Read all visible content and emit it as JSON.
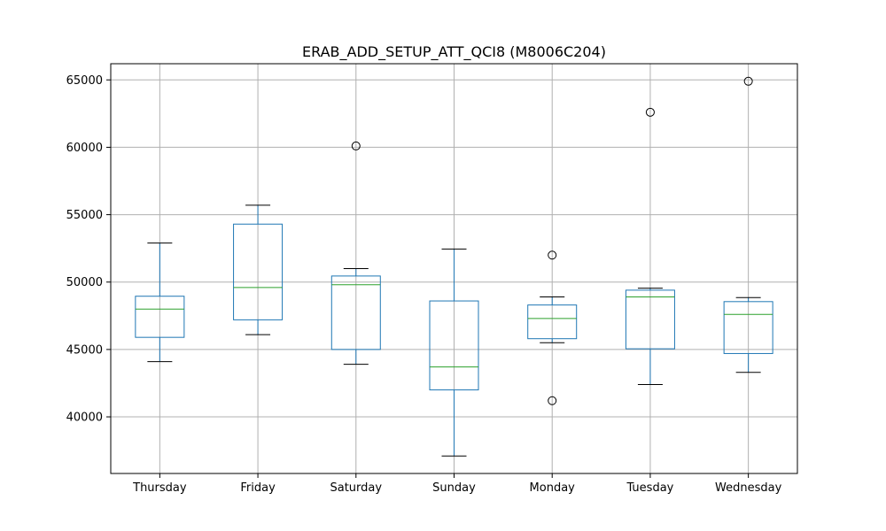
{
  "chart_data": {
    "type": "box",
    "title": "ERAB_ADD_SETUP_ATT_QCI8 (M8006C204)",
    "xlabel": "",
    "ylabel": "",
    "ylim": [
      35800,
      66200
    ],
    "yticks": [
      40000,
      45000,
      50000,
      55000,
      60000,
      65000
    ],
    "grid": true,
    "categories": [
      "Thursday",
      "Friday",
      "Saturday",
      "Sunday",
      "Monday",
      "Tuesday",
      "Wednesday"
    ],
    "boxes": [
      {
        "category": "Thursday",
        "whisker_low": 44100,
        "q1": 45900,
        "median": 48000,
        "q3": 48950,
        "whisker_high": 52900,
        "outliers": []
      },
      {
        "category": "Friday",
        "whisker_low": 46100,
        "q1": 47200,
        "median": 49600,
        "q3": 54300,
        "whisker_high": 55700,
        "outliers": []
      },
      {
        "category": "Saturday",
        "whisker_low": 43900,
        "q1": 45000,
        "median": 49800,
        "q3": 50450,
        "whisker_high": 51000,
        "outliers": [
          60100
        ]
      },
      {
        "category": "Sunday",
        "whisker_low": 37100,
        "q1": 42000,
        "median": 43700,
        "q3": 48600,
        "whisker_high": 52450,
        "outliers": []
      },
      {
        "category": "Monday",
        "whisker_low": 45500,
        "q1": 45800,
        "median": 47300,
        "q3": 48300,
        "whisker_high": 48900,
        "outliers": [
          52000,
          41200
        ]
      },
      {
        "category": "Tuesday",
        "whisker_low": 42400,
        "q1": 45050,
        "median": 48900,
        "q3": 49400,
        "whisker_high": 49550,
        "outliers": [
          62600
        ]
      },
      {
        "category": "Wednesday",
        "whisker_low": 43300,
        "q1": 44700,
        "median": 47600,
        "q3": 48550,
        "whisker_high": 48850,
        "outliers": [
          64900
        ]
      }
    ],
    "colors": {
      "box": "#1f77b4",
      "median": "#2ca02c",
      "grid": "#b0b0b0",
      "cap": "#000000",
      "outlier": "#000000"
    }
  }
}
